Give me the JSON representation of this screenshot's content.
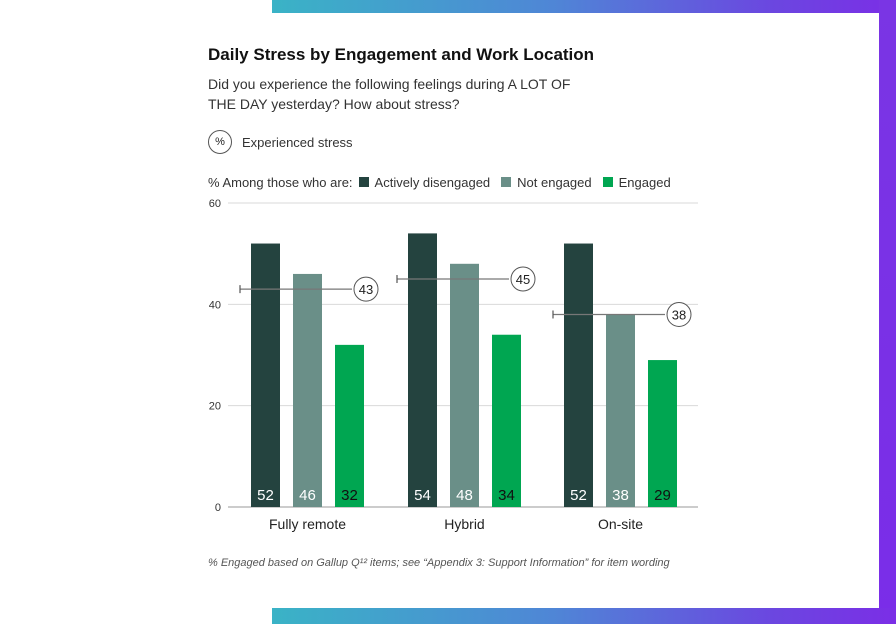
{
  "title": "Daily Stress by Engagement and Work Location",
  "subtitle": "Did you experience the following feelings during A LOT OF THE DAY yesterday? How about stress?",
  "metric": {
    "symbol": "%",
    "label": "Experienced stress"
  },
  "legend": {
    "prefix": "% Among those who are:",
    "items": [
      {
        "label": "Actively disengaged",
        "color": "#24433f"
      },
      {
        "label": "Not engaged",
        "color": "#6a8f88"
      },
      {
        "label": "Engaged",
        "color": "#00a651"
      }
    ]
  },
  "footnote": "% Engaged based on Gallup Q¹² items; see “Appendix 3: Support Information” for item wording",
  "chart_data": {
    "type": "bar",
    "categories": [
      "Fully remote",
      "Hybrid",
      "On-site"
    ],
    "series": [
      {
        "name": "Actively disengaged",
        "values": [
          52,
          54,
          52
        ]
      },
      {
        "name": "Not engaged",
        "values": [
          46,
          48,
          38
        ]
      },
      {
        "name": "Engaged",
        "values": [
          32,
          34,
          29
        ]
      }
    ],
    "overall": [
      43,
      45,
      38
    ],
    "ylim": [
      0,
      60
    ],
    "yticks": [
      0,
      20,
      40,
      60
    ],
    "grid": true
  }
}
